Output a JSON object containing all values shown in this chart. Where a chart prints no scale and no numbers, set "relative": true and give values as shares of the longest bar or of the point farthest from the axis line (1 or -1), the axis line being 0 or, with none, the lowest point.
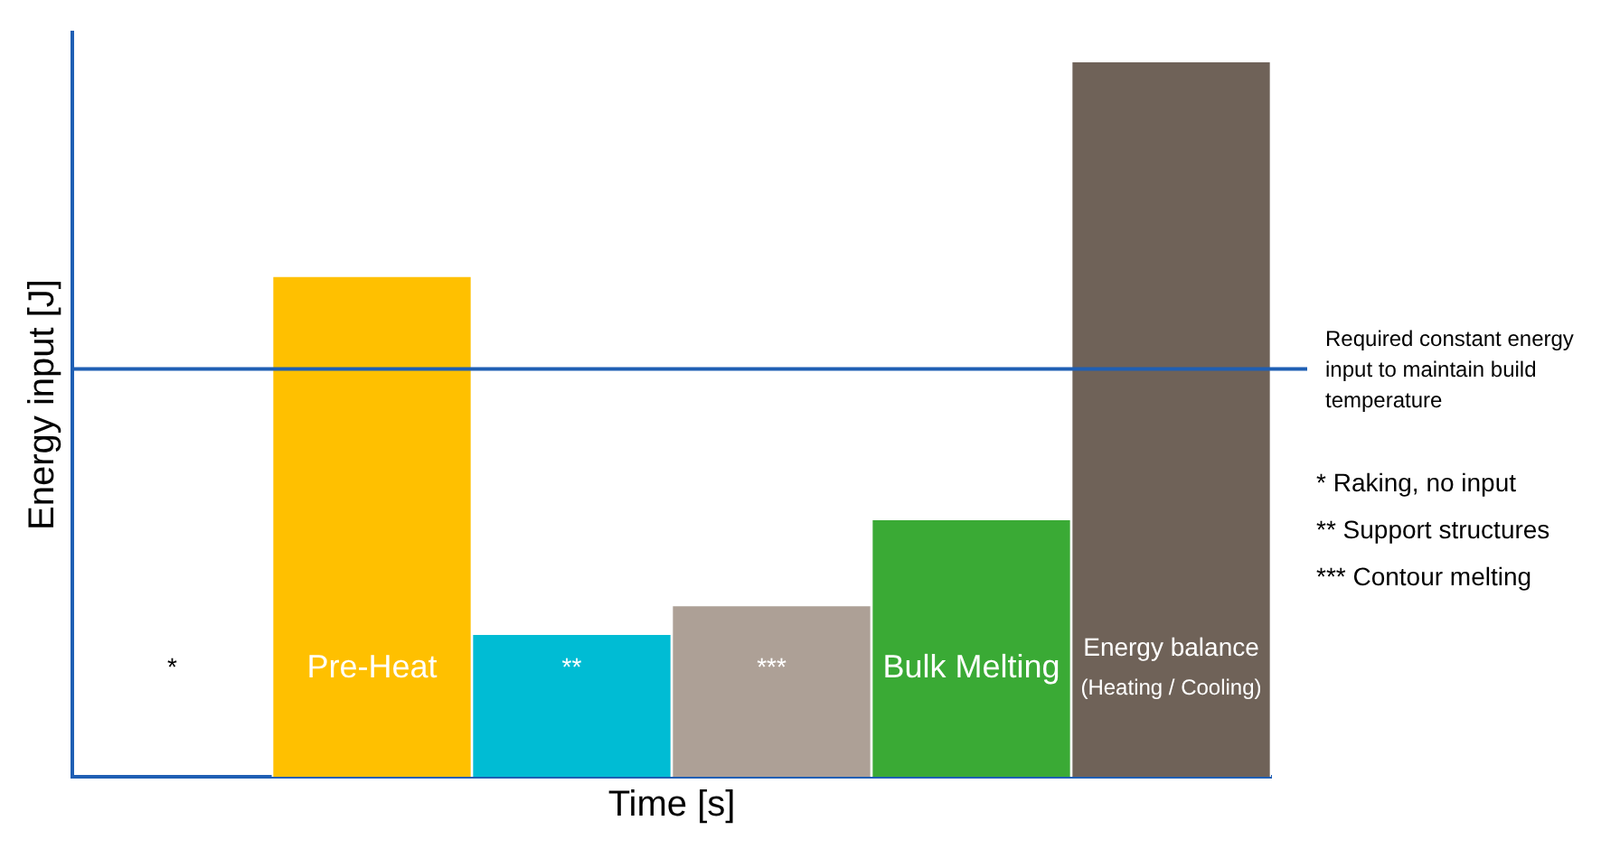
{
  "chart_data": {
    "type": "bar",
    "relative": true,
    "xlabel": "Time [s]",
    "ylabel": "Energy input [J]",
    "categories": [
      "*",
      "Pre-Heat",
      "**",
      "***",
      "Bulk Melting",
      "Energy balance (Heating / Cooling)"
    ],
    "values": [
      0,
      0.7,
      0.2,
      0.24,
      0.36,
      1
    ],
    "colors": [
      "#ffc000",
      "#ffc000",
      "#00bcd4",
      "#ada096",
      "#3aaa35",
      "#6f6258"
    ],
    "ref_lines": [
      {
        "axis": "y",
        "value": 0.57,
        "label": "Required constant energy input to maintain build temperature",
        "color": "#1f5fb4"
      }
    ],
    "annotations": [
      "* Raking, no input",
      "** Support structures",
      "*** Contour melting"
    ],
    "grid": false,
    "legend": false
  }
}
